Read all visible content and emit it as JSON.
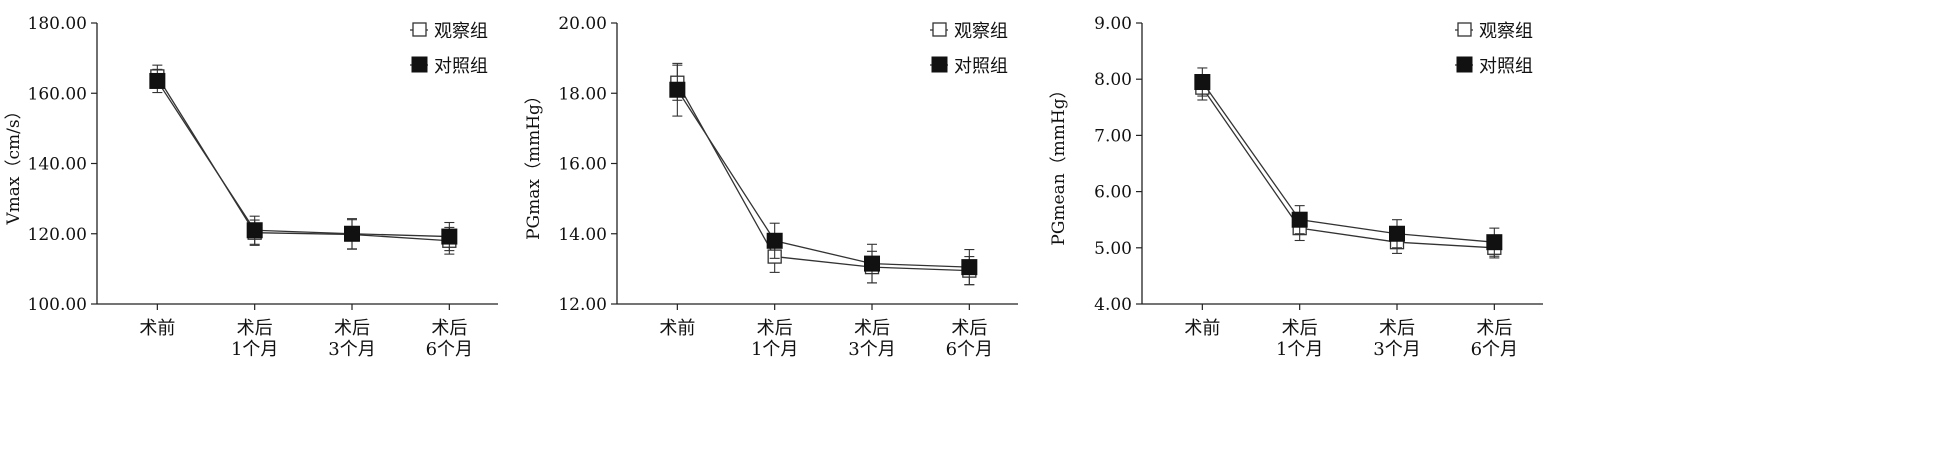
{
  "legend_labels": {
    "observation": "观察组",
    "control": "对照组"
  },
  "chart_data": [
    {
      "type": "line",
      "ylabel": "Vmax（cm/s）",
      "ylim": [
        100,
        180
      ],
      "yticks": [
        "100.00",
        "120.00",
        "140.00",
        "160.00",
        "180.00"
      ],
      "categories": [
        "术前",
        "术后\n1个月",
        "术后\n3个月",
        "术后\n6个月"
      ],
      "legend": "top-right",
      "series": [
        {
          "name": "观察组",
          "marker": "open-square",
          "values": [
            164.8,
            120.3,
            119.8,
            118.0
          ],
          "errors": [
            3.2,
            3.6,
            4.2,
            3.8
          ]
        },
        {
          "name": "对照组",
          "marker": "filled-square",
          "values": [
            163.5,
            121.0,
            120.0,
            119.2
          ],
          "errors": [
            3.3,
            4.0,
            4.3,
            4.0
          ]
        }
      ]
    },
    {
      "type": "line",
      "ylabel": "PGmax（mmHg）",
      "ylim": [
        12,
        20
      ],
      "yticks": [
        "12.00",
        "14.00",
        "16.00",
        "18.00",
        "20.00"
      ],
      "categories": [
        "术前",
        "术后\n1个月",
        "术后\n3个月",
        "术后\n6个月"
      ],
      "legend": "top-right",
      "series": [
        {
          "name": "观察组",
          "marker": "open-square",
          "values": [
            18.3,
            13.35,
            13.05,
            12.95
          ],
          "errors": [
            0.5,
            0.45,
            0.45,
            0.4
          ]
        },
        {
          "name": "对照组",
          "marker": "filled-square",
          "values": [
            18.1,
            13.8,
            13.15,
            13.05
          ],
          "errors": [
            0.75,
            0.5,
            0.55,
            0.5
          ]
        }
      ]
    },
    {
      "type": "line",
      "ylabel": "PGmean（mmHg）",
      "ylim": [
        4,
        9
      ],
      "yticks": [
        "4.00",
        "5.00",
        "6.00",
        "7.00",
        "8.00",
        "9.00"
      ],
      "categories": [
        "术前",
        "术后\n1个月",
        "术后\n3个月",
        "术后\n6个月"
      ],
      "legend": "top-right",
      "series": [
        {
          "name": "观察组",
          "marker": "open-square",
          "values": [
            7.85,
            5.35,
            5.1,
            5.0
          ],
          "errors": [
            0.22,
            0.22,
            0.2,
            0.18
          ]
        },
        {
          "name": "对照组",
          "marker": "filled-square",
          "values": [
            7.95,
            5.5,
            5.25,
            5.1
          ],
          "errors": [
            0.25,
            0.25,
            0.25,
            0.25
          ]
        }
      ]
    }
  ]
}
